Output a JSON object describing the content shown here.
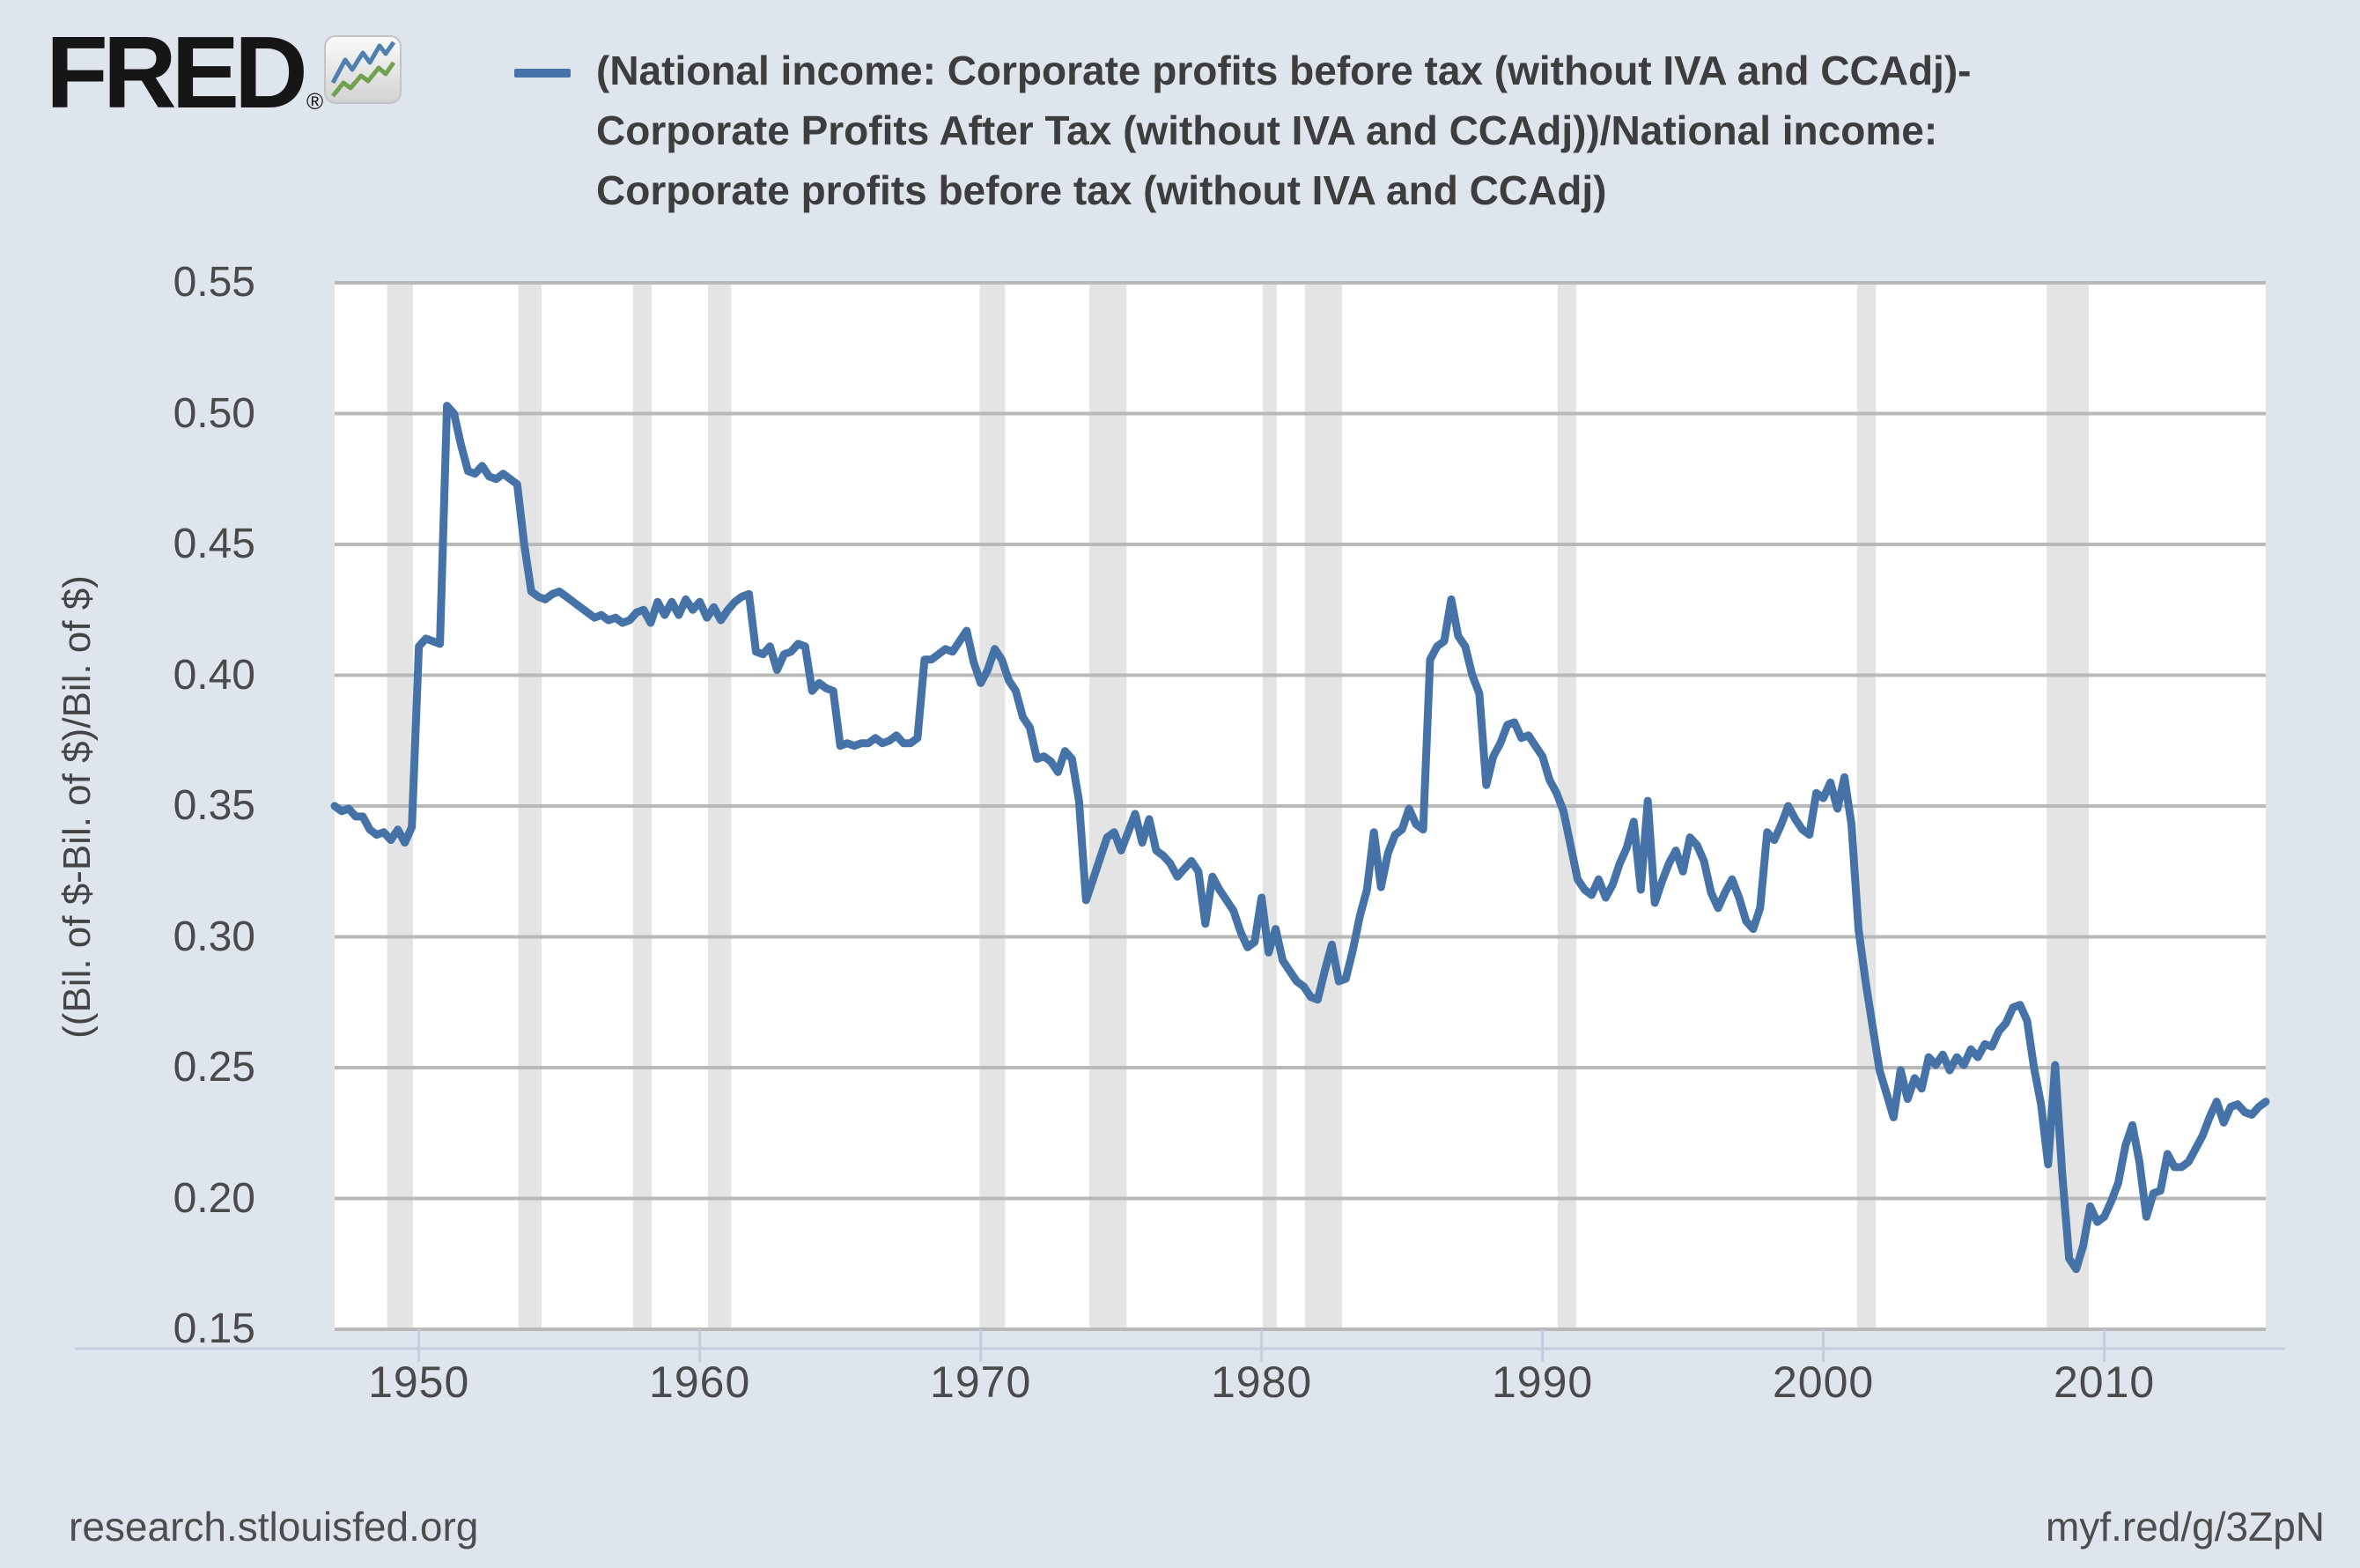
{
  "header": {
    "logo_text": "FRED",
    "logo_registered": "®",
    "title_line1": "(National income: Corporate profits before tax (without IVA and CCAdj)-",
    "title_line2": "Corporate Profits After Tax (without IVA and CCAdj))/National income:",
    "title_line3": "Corporate profits before tax (without IVA and CCAdj)"
  },
  "footer": {
    "left": "research.stlouisfed.org",
    "right": "myf.red/g/3ZpN"
  },
  "chart_data": {
    "type": "line",
    "title": "(National income: Corporate profits before tax (without IVA and CCAdj)-Corporate Profits After Tax (without IVA and CCAdj))/National income: Corporate profits before tax (without IVA and CCAdj)",
    "legend_position": "top",
    "grid": true,
    "ylabel": "((Bil. of $-Bil. of $)/Bil. of $)",
    "ylim": [
      0.15,
      0.55
    ],
    "yticks": [
      0.15,
      0.2,
      0.25,
      0.3,
      0.35,
      0.4,
      0.45,
      0.5,
      0.55
    ],
    "xlim": [
      1947.0,
      2015.75
    ],
    "xticks": [
      1950,
      1960,
      1970,
      1980,
      1990,
      2000,
      2010
    ],
    "frequency": "quarterly",
    "x_start": 1947.0,
    "x_step": 0.25,
    "series": [
      {
        "name": "(National income: Corporate profits before tax (without IVA and CCAdj)-Corporate Profits After Tax (without IVA and CCAdj))/National income: Corporate profits before tax (without IVA and CCAdj)",
        "color": "#4572a7",
        "values": [
          0.35,
          0.348,
          0.349,
          0.346,
          0.346,
          0.341,
          0.339,
          0.34,
          0.337,
          0.341,
          0.336,
          0.342,
          0.411,
          0.414,
          0.413,
          0.412,
          0.503,
          0.5,
          0.488,
          0.478,
          0.477,
          0.48,
          0.476,
          0.475,
          0.477,
          0.475,
          0.473,
          0.45,
          0.432,
          0.43,
          0.429,
          0.431,
          0.432,
          0.43,
          0.428,
          0.426,
          0.424,
          0.422,
          0.423,
          0.421,
          0.422,
          0.42,
          0.421,
          0.424,
          0.425,
          0.42,
          0.428,
          0.423,
          0.428,
          0.423,
          0.429,
          0.425,
          0.428,
          0.422,
          0.426,
          0.421,
          0.425,
          0.428,
          0.43,
          0.431,
          0.409,
          0.408,
          0.411,
          0.402,
          0.408,
          0.409,
          0.412,
          0.411,
          0.394,
          0.397,
          0.395,
          0.394,
          0.373,
          0.374,
          0.373,
          0.374,
          0.374,
          0.376,
          0.374,
          0.375,
          0.377,
          0.374,
          0.374,
          0.376,
          0.406,
          0.406,
          0.408,
          0.41,
          0.409,
          0.413,
          0.417,
          0.405,
          0.397,
          0.402,
          0.41,
          0.406,
          0.398,
          0.394,
          0.384,
          0.38,
          0.368,
          0.369,
          0.367,
          0.363,
          0.371,
          0.368,
          0.352,
          0.314,
          0.322,
          0.33,
          0.338,
          0.34,
          0.333,
          0.34,
          0.347,
          0.336,
          0.345,
          0.333,
          0.331,
          0.328,
          0.323,
          0.326,
          0.329,
          0.325,
          0.305,
          0.323,
          0.318,
          0.314,
          0.31,
          0.302,
          0.296,
          0.298,
          0.315,
          0.294,
          0.303,
          0.291,
          0.287,
          0.283,
          0.281,
          0.277,
          0.276,
          0.287,
          0.297,
          0.283,
          0.284,
          0.295,
          0.308,
          0.318,
          0.34,
          0.319,
          0.332,
          0.339,
          0.341,
          0.349,
          0.343,
          0.341,
          0.406,
          0.411,
          0.413,
          0.429,
          0.415,
          0.411,
          0.4,
          0.393,
          0.358,
          0.369,
          0.374,
          0.381,
          0.382,
          0.376,
          0.377,
          0.373,
          0.369,
          0.36,
          0.355,
          0.348,
          0.335,
          0.322,
          0.318,
          0.316,
          0.322,
          0.315,
          0.32,
          0.328,
          0.334,
          0.344,
          0.318,
          0.352,
          0.313,
          0.321,
          0.328,
          0.333,
          0.325,
          0.338,
          0.335,
          0.329,
          0.317,
          0.311,
          0.317,
          0.322,
          0.315,
          0.306,
          0.303,
          0.311,
          0.34,
          0.337,
          0.343,
          0.35,
          0.345,
          0.341,
          0.339,
          0.355,
          0.353,
          0.359,
          0.349,
          0.361,
          0.343,
          0.303,
          0.283,
          0.266,
          0.249,
          0.24,
          0.231,
          0.249,
          0.238,
          0.246,
          0.242,
          0.254,
          0.251,
          0.255,
          0.249,
          0.254,
          0.251,
          0.257,
          0.254,
          0.259,
          0.258,
          0.264,
          0.267,
          0.273,
          0.274,
          0.268,
          0.25,
          0.236,
          0.213,
          0.251,
          0.21,
          0.177,
          0.173,
          0.182,
          0.197,
          0.191,
          0.193,
          0.199,
          0.206,
          0.22,
          0.228,
          0.214,
          0.193,
          0.202,
          0.203,
          0.217,
          0.212,
          0.212,
          0.214,
          0.219,
          0.224,
          0.231,
          0.237,
          0.229,
          0.235,
          0.236,
          0.233,
          0.232,
          0.235,
          0.237
        ]
      }
    ],
    "recession_bands": [
      [
        1948.87,
        1949.79
      ],
      [
        1953.54,
        1954.37
      ],
      [
        1957.62,
        1958.29
      ],
      [
        1960.29,
        1961.12
      ],
      [
        1969.96,
        1970.87
      ],
      [
        1973.87,
        1975.2
      ],
      [
        1980.04,
        1980.54
      ],
      [
        1981.54,
        1982.87
      ],
      [
        1990.54,
        1991.2
      ],
      [
        2001.2,
        2001.87
      ],
      [
        2007.95,
        2009.45
      ]
    ],
    "colors": {
      "line": "#4572a7",
      "recession": "#e4e4e4",
      "grid": "#b9b9b9",
      "axis": "#c2cedd",
      "plot_bg": "#ffffff",
      "page_bg": "#dfe5ed",
      "tick_text": "#4a4a4a",
      "title_text": "#3d3d3d",
      "logo_icon_blue": "#4d7fb0",
      "logo_icon_green": "#71a04e"
    }
  }
}
